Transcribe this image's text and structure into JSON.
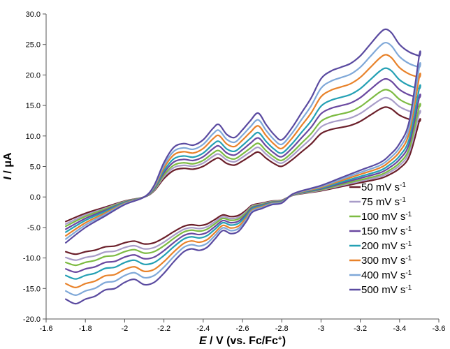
{
  "chart_data": {
    "type": "line",
    "title": "",
    "xlabel_italic": "E",
    "xlabel_rest": " / V (vs. Fc/Fc",
    "xlabel_sup": "+",
    "xlabel_close": ")",
    "ylabel_italic": "I",
    "ylabel_rest": " / μA",
    "xlim": [
      -1.6,
      -3.6
    ],
    "ylim": [
      -20,
      30
    ],
    "x_reversed": true,
    "xticks": [
      "-1.6",
      "-1.8",
      "-2",
      "-2.2",
      "-2.4",
      "-2.6",
      "-2.8",
      "-3",
      "-3.2",
      "-3.4",
      "-3.6"
    ],
    "yticks": [
      "-20.0",
      "-15.0",
      "-10.0",
      "-5.0",
      "0.0",
      "5.0",
      "10.0",
      "15.0",
      "20.0",
      "25.0",
      "30.0"
    ],
    "grid": false,
    "legend_position": "right",
    "legend_unit_base": "mV s",
    "legend_unit_sup": "-1",
    "cv_template": {
      "forward_x": [
        -1.7,
        -1.8,
        -1.9,
        -2.0,
        -2.1,
        -2.15,
        -2.2,
        -2.25,
        -2.3,
        -2.35,
        -2.4,
        -2.45,
        -2.48,
        -2.52,
        -2.56,
        -2.6,
        -2.64,
        -2.68,
        -2.72,
        -2.76,
        -2.8,
        -2.85,
        -2.9,
        -2.95,
        -3.0,
        -3.05,
        -3.1,
        -3.15,
        -3.2,
        -3.25,
        -3.3,
        -3.33,
        -3.36,
        -3.4,
        -3.45,
        -3.5
      ],
      "forward_y": [
        -0.6,
        -0.4,
        -0.25,
        -0.1,
        0.0,
        0.15,
        0.45,
        0.65,
        0.7,
        0.68,
        0.75,
        0.9,
        0.95,
        0.82,
        0.78,
        0.88,
        1.0,
        1.1,
        0.95,
        0.82,
        0.75,
        0.9,
        1.1,
        1.3,
        1.55,
        1.65,
        1.7,
        1.75,
        1.85,
        2.0,
        2.15,
        2.2,
        2.15,
        2.0,
        1.9,
        1.85
      ],
      "reverse_x": [
        -3.5,
        -3.45,
        -3.4,
        -3.35,
        -3.3,
        -3.2,
        -3.1,
        -3.0,
        -2.9,
        -2.85,
        -2.8,
        -2.75,
        -2.7,
        -2.65,
        -2.62,
        -2.58,
        -2.54,
        -2.5,
        -2.46,
        -2.42,
        -2.38,
        -2.34,
        -2.3,
        -2.25,
        -2.2,
        -2.15,
        -2.1,
        -2.05,
        -2.0,
        -1.95,
        -1.9,
        -1.85,
        -1.8,
        -1.75,
        -1.7
      ],
      "reverse_y": [
        1.85,
        1.0,
        0.7,
        0.55,
        0.45,
        0.35,
        0.25,
        0.15,
        0.08,
        0.03,
        -0.08,
        -0.1,
        -0.15,
        -0.2,
        -0.32,
        -0.45,
        -0.48,
        -0.44,
        -0.55,
        -0.66,
        -0.7,
        -0.68,
        -0.72,
        -0.85,
        -1.0,
        -1.12,
        -1.15,
        -1.08,
        -1.12,
        -1.2,
        -1.22,
        -1.3,
        -1.34,
        -1.4,
        -1.34
      ]
    },
    "series": [
      {
        "name": "50 mV s",
        "rate": 50,
        "scale": 6.7,
        "color": "#6b1f2a"
      },
      {
        "name": "75 mV s",
        "rate": 75,
        "scale": 7.4,
        "color": "#a89cc8"
      },
      {
        "name": "100 mV s",
        "rate": 100,
        "scale": 8.0,
        "color": "#7dbb42"
      },
      {
        "name": "150 mV s",
        "rate": 150,
        "scale": 8.8,
        "color": "#6a48a0"
      },
      {
        "name": "200 mV s",
        "rate": 200,
        "scale": 9.6,
        "color": "#24a0b4"
      },
      {
        "name": "300 mV s",
        "rate": 300,
        "scale": 10.6,
        "color": "#e8822a"
      },
      {
        "name": "400 mV s",
        "rate": 400,
        "scale": 11.5,
        "color": "#7fa8d8"
      },
      {
        "name": "500 mV s",
        "rate": 500,
        "scale": 12.5,
        "color": "#5a4aa0"
      }
    ]
  }
}
